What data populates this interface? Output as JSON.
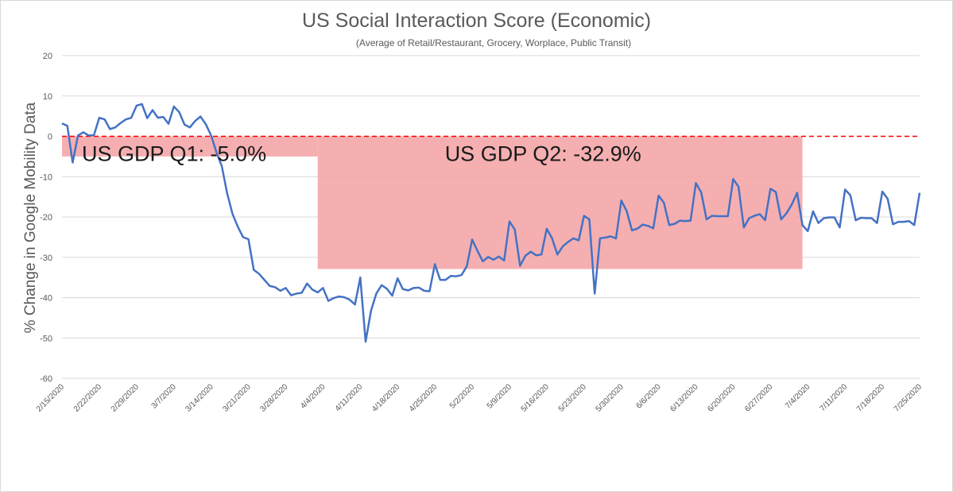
{
  "chart_data": {
    "type": "line",
    "title": "US Social Interaction Score (Economic)",
    "subtitle": "(Average of Retail/Restaurant, Grocery, Worplace, Public Transit)",
    "ylabel": "% Change in Google Mobility Data",
    "xlabel": "",
    "ylim": [
      -60,
      20
    ],
    "yticks": [
      20,
      10,
      0,
      -10,
      -20,
      -30,
      -40,
      -50,
      -60
    ],
    "grid": true,
    "x_tick_labels": [
      "2/15/2020",
      "2/22/2020",
      "2/29/2020",
      "3/7/2020",
      "3/14/2020",
      "3/21/2020",
      "3/28/2020",
      "4/4/2020",
      "4/11/2020",
      "4/18/2020",
      "4/25/2020",
      "5/2/2020",
      "5/9/2020",
      "5/16/2020",
      "5/23/2020",
      "5/30/2020",
      "6/6/2020",
      "6/13/2020",
      "6/20/2020",
      "6/27/2020",
      "7/4/2020",
      "7/11/2020",
      "7/18/2020",
      "7/25/2020"
    ],
    "series": [
      {
        "color": "#4472c4",
        "start_date": "2/15/2020",
        "end_date": "7/25/2020",
        "values": [
          3.2,
          2.6,
          -6.5,
          0.2,
          1.0,
          0.2,
          0.3,
          4.6,
          4.2,
          1.8,
          2.2,
          3.3,
          4.2,
          4.6,
          7.6,
          8.0,
          4.5,
          6.5,
          4.6,
          4.8,
          3.1,
          7.4,
          6.0,
          2.9,
          2.2,
          3.8,
          4.9,
          3.0,
          0.2,
          -4.0,
          -7.4,
          -14.1,
          -19.2,
          -22.4,
          -25.0,
          -25.5,
          -33.1,
          -34.1,
          -35.6,
          -37.1,
          -37.4,
          -38.3,
          -37.6,
          -39.4,
          -39.0,
          -38.8,
          -36.5,
          -38.0,
          -38.7,
          -37.6,
          -40.8,
          -40.1,
          -39.7,
          -39.9,
          -40.5,
          -41.7,
          -35.0,
          -50.9,
          -43.3,
          -39.0,
          -36.9,
          -37.8,
          -39.5,
          -35.2,
          -37.9,
          -38.2,
          -37.6,
          -37.5,
          -38.3,
          -38.4,
          -31.7,
          -35.6,
          -35.6,
          -34.6,
          -34.7,
          -34.4,
          -32.2,
          -25.6,
          -28.4,
          -31.0,
          -29.9,
          -30.6,
          -29.8,
          -30.8,
          -21.1,
          -23.1,
          -32.1,
          -29.6,
          -28.6,
          -29.5,
          -29.3,
          -22.9,
          -25.3,
          -29.3,
          -27.3,
          -26.2,
          -25.3,
          -25.8,
          -19.7,
          -20.6,
          -39.0,
          -25.3,
          -25.1,
          -24.8,
          -25.3,
          -15.9,
          -18.5,
          -23.3,
          -22.9,
          -21.9,
          -22.2,
          -22.8,
          -14.7,
          -16.5,
          -22.0,
          -21.7,
          -20.9,
          -21.0,
          -20.9,
          -11.6,
          -13.9,
          -20.6,
          -19.7,
          -19.8,
          -19.8,
          -19.8,
          -10.6,
          -12.5,
          -22.6,
          -20.3,
          -19.7,
          -19.3,
          -20.8,
          -13.0,
          -13.8,
          -20.6,
          -19.1,
          -16.9,
          -14.0,
          -22.0,
          -23.5,
          -18.6,
          -21.5,
          -20.3,
          -20.1,
          -20.1,
          -22.6,
          -13.2,
          -14.6,
          -20.8,
          -20.2,
          -20.3,
          -20.3,
          -21.5,
          -13.7,
          -15.5,
          -21.8,
          -21.2,
          -21.2,
          -21.0,
          -22.0,
          -14.0
        ]
      }
    ],
    "zero_line": {
      "y": 0,
      "color": "#ff0000",
      "style": "dashed"
    },
    "annotations": [
      {
        "label": "US GDP Q1: -5.0%",
        "value": -5.0,
        "start_date": "2/15/2020",
        "end_date": "4/3/2020",
        "color": "#f4a6a9"
      },
      {
        "label": "US GDP Q2: -32.9%",
        "value": -32.9,
        "start_date": "4/3/2020",
        "end_date": "7/3/2020",
        "color": "#f4a6a9"
      }
    ]
  }
}
